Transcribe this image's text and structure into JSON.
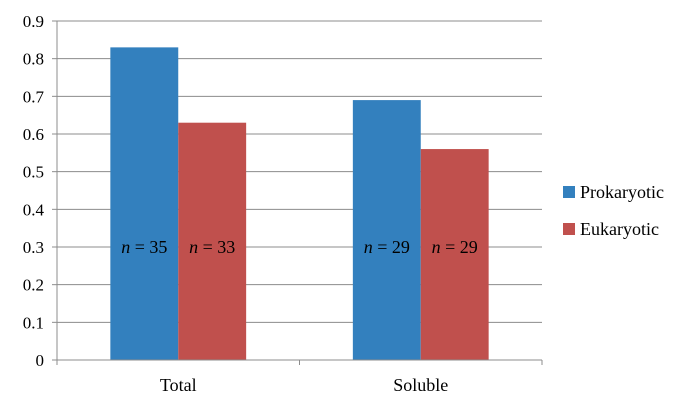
{
  "chart_data": {
    "type": "bar",
    "categories": [
      "Total",
      "Soluble"
    ],
    "series": [
      {
        "name": "Prokaryotic",
        "values": [
          0.83,
          0.69
        ],
        "color": "#3380BE",
        "labels": [
          "35",
          "29"
        ]
      },
      {
        "name": "Eukaryotic",
        "values": [
          0.63,
          0.56
        ],
        "color": "#C0504D",
        "labels": [
          "33",
          "29"
        ]
      }
    ],
    "label_prefix": "n = ",
    "ylim": [
      0,
      0.9
    ],
    "yticks": [
      "0",
      "0.1",
      "0.2",
      "0.3",
      "0.4",
      "0.5",
      "0.6",
      "0.7",
      "0.8",
      "0.9"
    ],
    "grid": true,
    "legend_position": "right",
    "title": "",
    "xlabel": "",
    "ylabel": ""
  }
}
